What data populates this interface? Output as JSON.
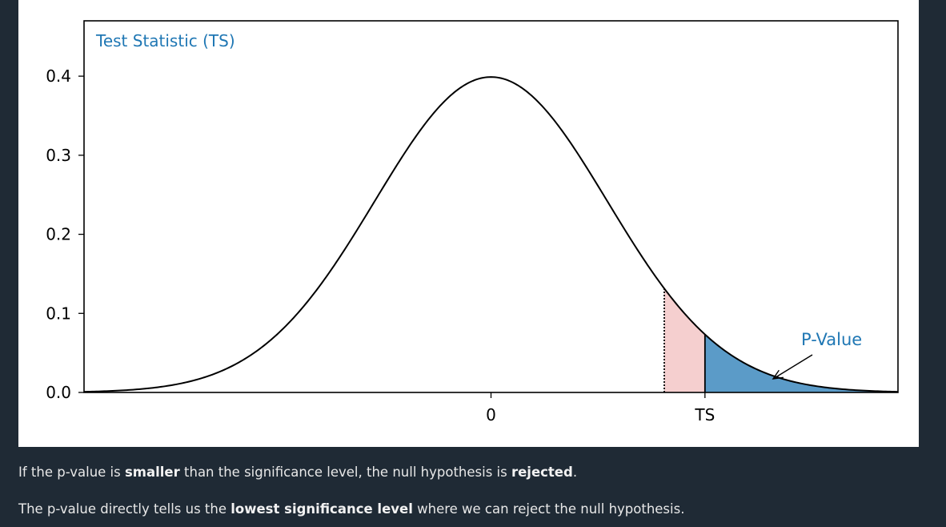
{
  "chart_data": {
    "type": "area",
    "title": "",
    "annotations": {
      "top_left": "Test Statistic (TS)",
      "p_value_label": "P-Value"
    },
    "xlabel": "",
    "ylabel": "",
    "xlim": [
      -3.5,
      3.5
    ],
    "ylim": [
      0,
      0.47
    ],
    "x_ticks": [
      {
        "value": 0,
        "label": "0"
      },
      {
        "value": 1.84,
        "label": "TS"
      }
    ],
    "y_ticks": [
      {
        "value": 0.0,
        "label": "0.0"
      },
      {
        "value": 0.1,
        "label": "0.1"
      },
      {
        "value": 0.2,
        "label": "0.2"
      },
      {
        "value": 0.3,
        "label": "0.3"
      },
      {
        "value": 0.4,
        "label": "0.4"
      }
    ],
    "series": [
      {
        "curve": "standard-normal-pdf",
        "mean": 0,
        "sd": 1
      }
    ],
    "critical_value": 1.49,
    "test_statistic": 1.84,
    "shaded_regions": [
      {
        "from": 1.49,
        "to": 1.84,
        "color": "#f5cfcf"
      },
      {
        "from": 1.84,
        "to": 3.5,
        "color": "#5b9bc8"
      }
    ],
    "grid": false,
    "colors": {
      "curve": "#000000",
      "annotation": "#1f77b4"
    }
  },
  "captions": [
    [
      {
        "text": "If the p-value is ",
        "bold": false
      },
      {
        "text": "smaller",
        "bold": true
      },
      {
        "text": " than the significance level, the null hypothesis is ",
        "bold": false
      },
      {
        "text": "rejected",
        "bold": true
      },
      {
        "text": ".",
        "bold": false
      }
    ],
    [
      {
        "text": "The p-value directly tells us the ",
        "bold": false
      },
      {
        "text": "lowest significance level",
        "bold": true
      },
      {
        "text": " where we can reject the null hypothesis.",
        "bold": false
      }
    ]
  ]
}
